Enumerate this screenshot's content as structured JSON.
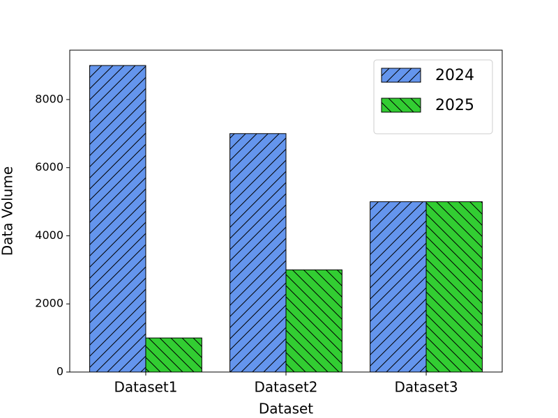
{
  "chart_data": {
    "type": "bar",
    "x_label": "Dataset",
    "y_label": "Data Volume",
    "categories": [
      "Dataset1",
      "Dataset2",
      "Dataset3"
    ],
    "series": [
      {
        "name": "2024",
        "color": "#6495ed",
        "hatch": "/",
        "values": [
          9000,
          7000,
          5000
        ]
      },
      {
        "name": "2025",
        "color": "#32cd32",
        "hatch": "\\",
        "values": [
          1000,
          3000,
          5000
        ]
      }
    ],
    "ylim": [
      0,
      9450
    ],
    "yticks": [
      0,
      2000,
      4000,
      6000,
      8000
    ],
    "legend": "upper right"
  }
}
